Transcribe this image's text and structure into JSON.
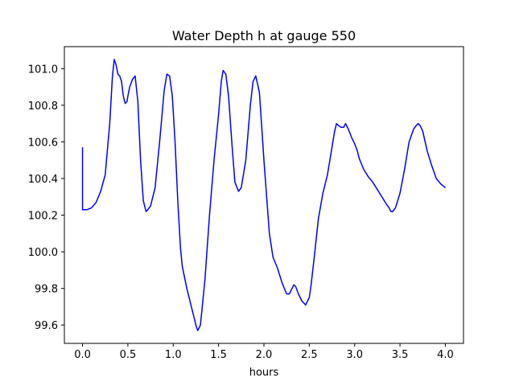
{
  "chart_data": {
    "type": "line",
    "title": "Water Depth h at gauge 550",
    "xlabel": "hours",
    "ylabel": "",
    "xlim": [
      -0.2,
      4.2
    ],
    "ylim": [
      99.5,
      101.12
    ],
    "xticks": [
      0.0,
      0.5,
      1.0,
      1.5,
      2.0,
      2.5,
      3.0,
      3.5,
      4.0
    ],
    "xtick_labels": [
      "0.0",
      "0.5",
      "1.0",
      "1.5",
      "2.0",
      "2.5",
      "3.0",
      "3.5",
      "4.0"
    ],
    "yticks": [
      99.6,
      99.8,
      100.0,
      100.2,
      100.4,
      100.6,
      100.8,
      101.0
    ],
    "ytick_labels": [
      "99.6",
      "99.8",
      "100.0",
      "100.2",
      "100.4",
      "100.6",
      "100.8",
      "101.0"
    ],
    "grid": false,
    "series": [
      {
        "color": "#0000ff",
        "x": [
          0.0,
          0.0,
          0.05,
          0.1,
          0.15,
          0.2,
          0.25,
          0.3,
          0.33,
          0.35,
          0.37,
          0.39,
          0.41,
          0.43,
          0.45,
          0.47,
          0.49,
          0.5,
          0.52,
          0.55,
          0.58,
          0.61,
          0.64,
          0.67,
          0.7,
          0.72,
          0.75,
          0.8,
          0.85,
          0.9,
          0.93,
          0.96,
          0.99,
          1.02,
          1.05,
          1.08,
          1.1,
          1.15,
          1.2,
          1.25,
          1.27,
          1.3,
          1.35,
          1.4,
          1.45,
          1.5,
          1.53,
          1.55,
          1.58,
          1.61,
          1.65,
          1.68,
          1.72,
          1.75,
          1.8,
          1.85,
          1.88,
          1.91,
          1.95,
          1.98,
          2.0,
          2.03,
          2.06,
          2.1,
          2.15,
          2.2,
          2.25,
          2.28,
          2.31,
          2.33,
          2.35,
          2.38,
          2.42,
          2.46,
          2.5,
          2.52,
          2.55,
          2.6,
          2.65,
          2.7,
          2.75,
          2.78,
          2.8,
          2.82,
          2.85,
          2.88,
          2.9,
          2.93,
          2.97,
          3.0,
          3.03,
          3.05,
          3.1,
          3.15,
          3.2,
          3.25,
          3.3,
          3.35,
          3.38,
          3.4,
          3.42,
          3.45,
          3.5,
          3.55,
          3.6,
          3.65,
          3.68,
          3.7,
          3.72,
          3.75,
          3.8,
          3.85,
          3.9,
          3.95,
          4.0
        ],
        "y": [
          100.57,
          100.23,
          100.23,
          100.24,
          100.27,
          100.33,
          100.42,
          100.7,
          100.96,
          101.05,
          101.02,
          100.97,
          100.96,
          100.93,
          100.85,
          100.81,
          100.82,
          100.85,
          100.9,
          100.94,
          100.96,
          100.82,
          100.5,
          100.28,
          100.22,
          100.23,
          100.25,
          100.35,
          100.6,
          100.88,
          100.97,
          100.96,
          100.85,
          100.6,
          100.28,
          100.02,
          99.92,
          99.8,
          99.7,
          99.6,
          99.57,
          99.6,
          99.85,
          100.2,
          100.5,
          100.75,
          100.93,
          100.99,
          100.97,
          100.85,
          100.57,
          100.38,
          100.33,
          100.35,
          100.5,
          100.8,
          100.93,
          100.96,
          100.87,
          100.65,
          100.5,
          100.3,
          100.1,
          99.97,
          99.91,
          99.83,
          99.77,
          99.77,
          99.8,
          99.82,
          99.81,
          99.77,
          99.73,
          99.71,
          99.75,
          99.82,
          99.95,
          100.18,
          100.32,
          100.42,
          100.57,
          100.66,
          100.7,
          100.69,
          100.68,
          100.68,
          100.7,
          100.67,
          100.62,
          100.59,
          100.55,
          100.51,
          100.45,
          100.41,
          100.38,
          100.34,
          100.3,
          100.26,
          100.24,
          100.22,
          100.22,
          100.24,
          100.32,
          100.45,
          100.6,
          100.67,
          100.69,
          100.7,
          100.69,
          100.66,
          100.55,
          100.47,
          100.4,
          100.37,
          100.35
        ]
      }
    ]
  }
}
